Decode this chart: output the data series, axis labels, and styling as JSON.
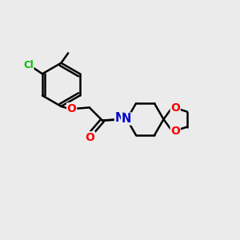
{
  "bg_color": "#ebebeb",
  "bond_color": "#000000",
  "bond_width": 1.8,
  "atom_colors": {
    "C": "#000000",
    "O": "#ff0000",
    "N": "#0000cc",
    "Cl": "#00bb00"
  },
  "font_size": 8.5
}
